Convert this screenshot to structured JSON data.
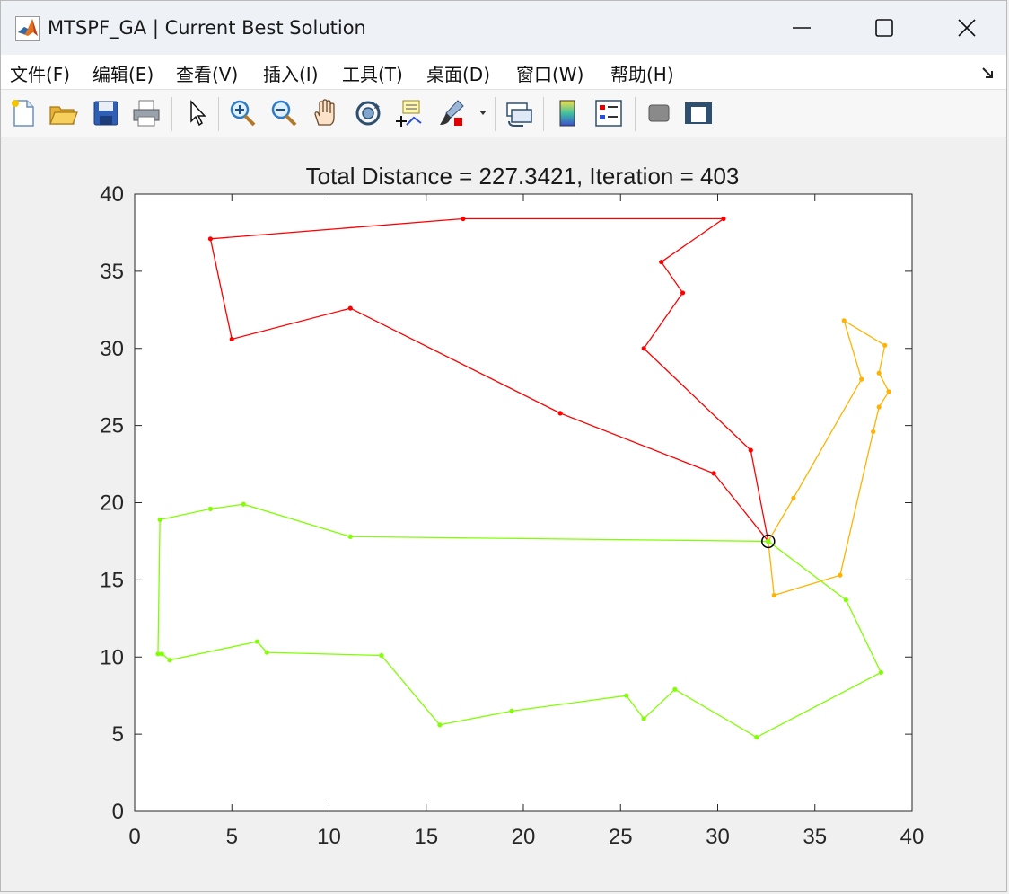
{
  "window": {
    "title": "MTSPF_GA | Current Best Solution"
  },
  "menu": [
    {
      "id": "file",
      "label": "文件(F)"
    },
    {
      "id": "edit",
      "label": "编辑(E)"
    },
    {
      "id": "view",
      "label": "查看(V)"
    },
    {
      "id": "insert",
      "label": "插入(I)"
    },
    {
      "id": "tools",
      "label": "工具(T)"
    },
    {
      "id": "desktop",
      "label": "桌面(D)"
    },
    {
      "id": "window",
      "label": "窗口(W)"
    },
    {
      "id": "help",
      "label": "帮助(H)"
    }
  ],
  "toolbar": [
    {
      "id": "new",
      "icon": "new-figure-icon"
    },
    {
      "id": "open",
      "icon": "open-file-icon"
    },
    {
      "id": "save",
      "icon": "save-icon"
    },
    {
      "id": "print",
      "icon": "print-icon"
    },
    {
      "id": "select",
      "icon": "pointer-icon"
    },
    {
      "id": "zoom-in",
      "icon": "zoom-in-icon"
    },
    {
      "id": "zoom-out",
      "icon": "zoom-out-icon"
    },
    {
      "id": "pan",
      "icon": "pan-hand-icon"
    },
    {
      "id": "rotate",
      "icon": "rotate-3d-icon"
    },
    {
      "id": "data-cursor",
      "icon": "data-cursor-icon"
    },
    {
      "id": "brush",
      "icon": "brush-icon"
    },
    {
      "id": "link",
      "icon": "link-plot-icon"
    },
    {
      "id": "colorbar",
      "icon": "colorbar-icon"
    },
    {
      "id": "legend",
      "icon": "legend-icon"
    },
    {
      "id": "hide-tools",
      "icon": "hide-plot-tools-icon"
    },
    {
      "id": "show-tools",
      "icon": "show-plot-tools-icon"
    }
  ],
  "colors": {
    "route1": "#ff0000",
    "route2": "#ffb300",
    "route3": "#80ff00",
    "depot": "#000000"
  },
  "chart_data": {
    "type": "line",
    "title": "Total Distance = 227.3421, Iteration = 403",
    "xlabel": "",
    "ylabel": "",
    "xlim": [
      0,
      40
    ],
    "ylim": [
      0,
      40
    ],
    "xticks": [
      0,
      5,
      10,
      15,
      20,
      25,
      30,
      35,
      40
    ],
    "yticks": [
      0,
      5,
      10,
      15,
      20,
      25,
      30,
      35,
      40
    ],
    "grid": false,
    "depot": {
      "x": 32.6,
      "y": 17.5
    },
    "series": [
      {
        "color": "#ff0000",
        "points": [
          [
            32.6,
            17.5
          ],
          [
            29.8,
            21.9
          ],
          [
            21.9,
            25.8
          ],
          [
            11.1,
            32.6
          ],
          [
            5.0,
            30.6
          ],
          [
            3.9,
            37.1
          ],
          [
            16.9,
            38.4
          ],
          [
            30.3,
            38.4
          ],
          [
            27.1,
            35.6
          ],
          [
            28.2,
            33.6
          ],
          [
            26.2,
            30.0
          ],
          [
            31.7,
            23.4
          ],
          [
            32.6,
            17.5
          ]
        ]
      },
      {
        "color": "#ffb300",
        "points": [
          [
            32.6,
            17.5
          ],
          [
            33.9,
            20.3
          ],
          [
            37.4,
            28.0
          ],
          [
            36.5,
            31.8
          ],
          [
            38.6,
            30.2
          ],
          [
            38.3,
            28.4
          ],
          [
            38.8,
            27.2
          ],
          [
            38.3,
            26.2
          ],
          [
            38.0,
            24.6
          ],
          [
            36.3,
            15.3
          ],
          [
            32.9,
            14.0
          ],
          [
            32.6,
            17.5
          ]
        ]
      },
      {
        "color": "#80ff00",
        "points": [
          [
            32.6,
            17.5
          ],
          [
            36.6,
            13.7
          ],
          [
            38.4,
            9.0
          ],
          [
            32.0,
            4.8
          ],
          [
            27.8,
            7.9
          ],
          [
            26.2,
            6.0
          ],
          [
            25.3,
            7.5
          ],
          [
            19.4,
            6.5
          ],
          [
            15.7,
            5.6
          ],
          [
            12.7,
            10.1
          ],
          [
            6.8,
            10.3
          ],
          [
            6.3,
            11.0
          ],
          [
            1.8,
            9.8
          ],
          [
            1.4,
            10.2
          ],
          [
            1.2,
            10.2
          ],
          [
            1.3,
            18.9
          ],
          [
            3.9,
            19.6
          ],
          [
            5.6,
            19.9
          ],
          [
            11.1,
            17.8
          ],
          [
            32.6,
            17.5
          ]
        ]
      }
    ]
  }
}
